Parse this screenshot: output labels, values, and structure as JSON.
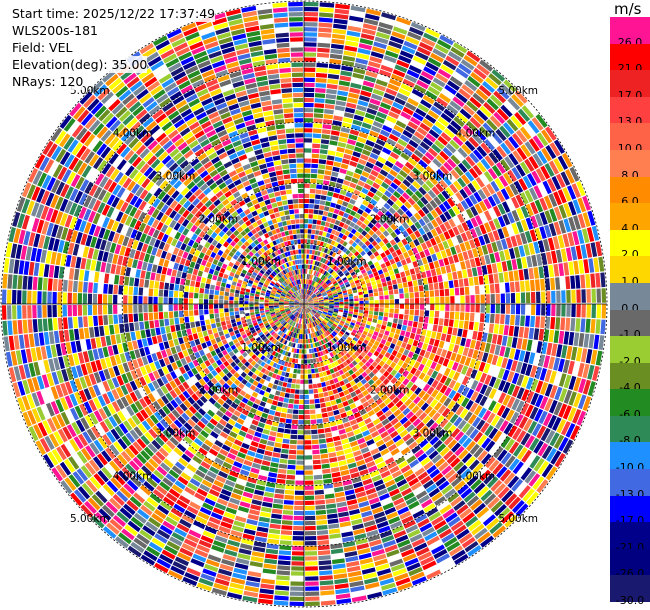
{
  "info": {
    "start_time": "Start time: 2025/12/22 17:37:49",
    "site": "WLS200s-181",
    "field": "Field: VEL",
    "elevation": "Elevation(deg): 35.00",
    "nrays": "NRays: 120"
  },
  "colorbar": {
    "unit": "m/s",
    "bins": [
      {
        "label": "26.0",
        "color": "#ff1493"
      },
      {
        "label": "21.0",
        "color": "#ff0000"
      },
      {
        "label": "17.0",
        "color": "#ee2222"
      },
      {
        "label": "13.0",
        "color": "#ff4040"
      },
      {
        "label": "10.0",
        "color": "#ff6347"
      },
      {
        "label": "8.0",
        "color": "#ff7f50"
      },
      {
        "label": "6.0",
        "color": "#ff8c00"
      },
      {
        "label": "4.0",
        "color": "#ffa500"
      },
      {
        "label": "2.0",
        "color": "#ffff00"
      },
      {
        "label": "1.0",
        "color": "#ffd700"
      },
      {
        "label": "0.0",
        "color": "#778899"
      },
      {
        "label": "-1.0",
        "color": "#696969"
      },
      {
        "label": "-2.0",
        "color": "#9acd32"
      },
      {
        "label": "-4.0",
        "color": "#6b8e23"
      },
      {
        "label": "-6.0",
        "color": "#228b22"
      },
      {
        "label": "-8.0",
        "color": "#2e8b57"
      },
      {
        "label": "-10.0",
        "color": "#1e90ff"
      },
      {
        "label": "-13.0",
        "color": "#4169e1"
      },
      {
        "label": "-17.0",
        "color": "#0000ff"
      },
      {
        "label": "-21.0",
        "color": "#00008b"
      },
      {
        "label": "-26.0",
        "color": "#000080"
      },
      {
        "label": "-30.0",
        "color": "#191970"
      }
    ]
  },
  "chart_data": {
    "type": "heatmap",
    "projection": "polar-ppi",
    "field": "VEL",
    "unit": "m/s",
    "nrays": 120,
    "range_max_km": 5.0,
    "range_rings_km": [
      1.0,
      2.0,
      3.0,
      4.0,
      5.0
    ],
    "range_ring_labels": [
      "1.00km",
      "2.00km",
      "3.00km",
      "4.00km",
      "5.00km"
    ],
    "colorbar_levels": [
      26.0,
      21.0,
      17.0,
      13.0,
      10.0,
      8.0,
      6.0,
      4.0,
      2.0,
      1.0,
      0.0,
      -1.0,
      -2.0,
      -4.0,
      -6.0,
      -8.0,
      -10.0,
      -13.0,
      -17.0,
      -21.0,
      -26.0,
      -30.0
    ],
    "pattern": "noisy velocities at all azimuths; a coherent positive (pink/red/orange) region east and south-east of the origin at 1-3 km"
  }
}
